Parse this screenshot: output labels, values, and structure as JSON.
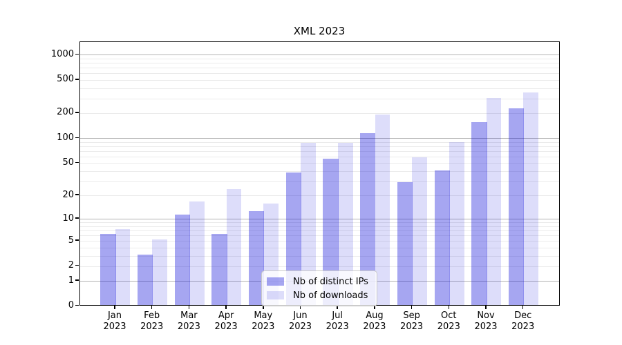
{
  "title": "XML 2023",
  "legend": {
    "items": [
      {
        "label": "Nb of distinct IPs",
        "color": "rgba(0,0,215,0.35)"
      },
      {
        "label": "Nb of downloads",
        "color": "rgba(0,0,215,0.135)"
      }
    ]
  },
  "x_axis": {
    "months": [
      "Jan",
      "Feb",
      "Mar",
      "Apr",
      "May",
      "Jun",
      "Jul",
      "Aug",
      "Sep",
      "Oct",
      "Nov",
      "Dec"
    ],
    "year": "2023"
  },
  "y_axis": {
    "tick_values": [
      0,
      1,
      2,
      5,
      10,
      20,
      50,
      100,
      200,
      500,
      1000
    ],
    "tick_labels": [
      "0",
      "1",
      "2",
      "5",
      "10",
      "20",
      "50",
      "100",
      "200",
      "500",
      "1000"
    ],
    "major_grid_values": [
      1,
      10,
      100,
      1000
    ],
    "minor_grid_values": [
      2,
      3,
      4,
      5,
      6,
      7,
      8,
      9,
      20,
      30,
      40,
      50,
      60,
      70,
      80,
      90,
      200,
      300,
      400,
      500,
      600,
      700,
      800,
      900
    ],
    "scale": "log1p"
  },
  "chart_data": {
    "type": "bar",
    "title": "XML 2023",
    "categories": [
      "Jan 2023",
      "Feb 2023",
      "Mar 2023",
      "Apr 2023",
      "May 2023",
      "Jun 2023",
      "Jul 2023",
      "Aug 2023",
      "Sep 2023",
      "Oct 2023",
      "Nov 2023",
      "Dec 2023"
    ],
    "series": [
      {
        "name": "Nb of distinct IPs",
        "color": "rgba(0,0,215,0.35)",
        "values": [
          6,
          3,
          11,
          6,
          12,
          37,
          54,
          110,
          28,
          39,
          150,
          220
        ]
      },
      {
        "name": "Nb of downloads",
        "color": "rgba(0,0,215,0.135)",
        "values": [
          7,
          5,
          16,
          23,
          15,
          85,
          85,
          185,
          56,
          87,
          290,
          340
        ]
      }
    ],
    "xlabel": "",
    "ylabel": "",
    "yscale": "log1p",
    "ylim": [
      0,
      1430
    ],
    "grid": true,
    "legend_position": "lower center"
  }
}
